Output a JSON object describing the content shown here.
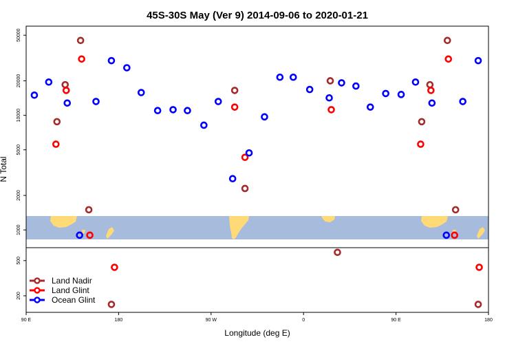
{
  "chart_data": {
    "type": "scatter",
    "title": "45S-30S May (Ver 9)   2014-09-06 to 2020-01-21",
    "xlabel": "Longitude (deg E)",
    "ylabel": "N Total",
    "y_scale": "log",
    "xlim": [
      90,
      540
    ],
    "ylim_main": [
      700,
      60000
    ],
    "ylim_lower": [
      130,
      700
    ],
    "x_ticks": [
      {
        "value": 90,
        "label": "90 E"
      },
      {
        "value": 180,
        "label": "180"
      },
      {
        "value": 270,
        "label": "90 W"
      },
      {
        "value": 360,
        "label": "0"
      },
      {
        "value": 450,
        "label": "90 E"
      },
      {
        "value": 540,
        "label": "180"
      }
    ],
    "y_ticks_main": [
      1000,
      2000,
      5000,
      10000,
      20000,
      50000
    ],
    "y_ticks_lower": [
      200,
      500
    ],
    "legend_position": "bottom-left",
    "series": [
      {
        "name": "Land Nadir",
        "color": "#A52A2A",
        "points": [
          {
            "x": 120,
            "y": 8800
          },
          {
            "x": 128,
            "y": 18500
          },
          {
            "x": 143,
            "y": 45000
          },
          {
            "x": 151,
            "y": 1500
          },
          {
            "x": 173,
            "y": 160
          },
          {
            "x": 293,
            "y": 16500
          },
          {
            "x": 303,
            "y": 2300
          },
          {
            "x": 386,
            "y": 20000
          },
          {
            "x": 393,
            "y": 620
          },
          {
            "x": 475,
            "y": 8800
          },
          {
            "x": 483,
            "y": 18500
          },
          {
            "x": 500,
            "y": 45000
          },
          {
            "x": 508,
            "y": 1500
          },
          {
            "x": 530,
            "y": 160
          }
        ]
      },
      {
        "name": "Land Glint",
        "color": "#FF0000",
        "points": [
          {
            "x": 119,
            "y": 5600
          },
          {
            "x": 129,
            "y": 16500
          },
          {
            "x": 144,
            "y": 31000
          },
          {
            "x": 152,
            "y": 900
          },
          {
            "x": 176,
            "y": 420
          },
          {
            "x": 293,
            "y": 11800
          },
          {
            "x": 303,
            "y": 4300
          },
          {
            "x": 387,
            "y": 11200
          },
          {
            "x": 474,
            "y": 5600
          },
          {
            "x": 484,
            "y": 16500
          },
          {
            "x": 501,
            "y": 31000
          },
          {
            "x": 507,
            "y": 900
          },
          {
            "x": 531,
            "y": 420
          }
        ]
      },
      {
        "name": "Ocean Glint",
        "color": "#0000FF",
        "points": [
          {
            "x": 98,
            "y": 15000
          },
          {
            "x": 112,
            "y": 19500
          },
          {
            "x": 130,
            "y": 12800
          },
          {
            "x": 142,
            "y": 900
          },
          {
            "x": 158,
            "y": 13200
          },
          {
            "x": 173,
            "y": 30000
          },
          {
            "x": 188,
            "y": 26000
          },
          {
            "x": 202,
            "y": 15800
          },
          {
            "x": 218,
            "y": 11000
          },
          {
            "x": 233,
            "y": 11200
          },
          {
            "x": 247,
            "y": 11000
          },
          {
            "x": 263,
            "y": 8200
          },
          {
            "x": 277,
            "y": 13200
          },
          {
            "x": 291,
            "y": 2800
          },
          {
            "x": 307,
            "y": 4700
          },
          {
            "x": 322,
            "y": 9700
          },
          {
            "x": 337,
            "y": 21500
          },
          {
            "x": 350,
            "y": 21500
          },
          {
            "x": 366,
            "y": 16800
          },
          {
            "x": 385,
            "y": 14200
          },
          {
            "x": 397,
            "y": 19200
          },
          {
            "x": 411,
            "y": 18000
          },
          {
            "x": 425,
            "y": 11800
          },
          {
            "x": 440,
            "y": 15500
          },
          {
            "x": 455,
            "y": 15200
          },
          {
            "x": 469,
            "y": 19500
          },
          {
            "x": 485,
            "y": 12800
          },
          {
            "x": 499,
            "y": 900
          },
          {
            "x": 515,
            "y": 13200
          },
          {
            "x": 530,
            "y": 30000
          }
        ]
      }
    ]
  },
  "map_strip": {
    "ocean_color": "#A7BCDC",
    "land_color": "#FFDA77"
  }
}
